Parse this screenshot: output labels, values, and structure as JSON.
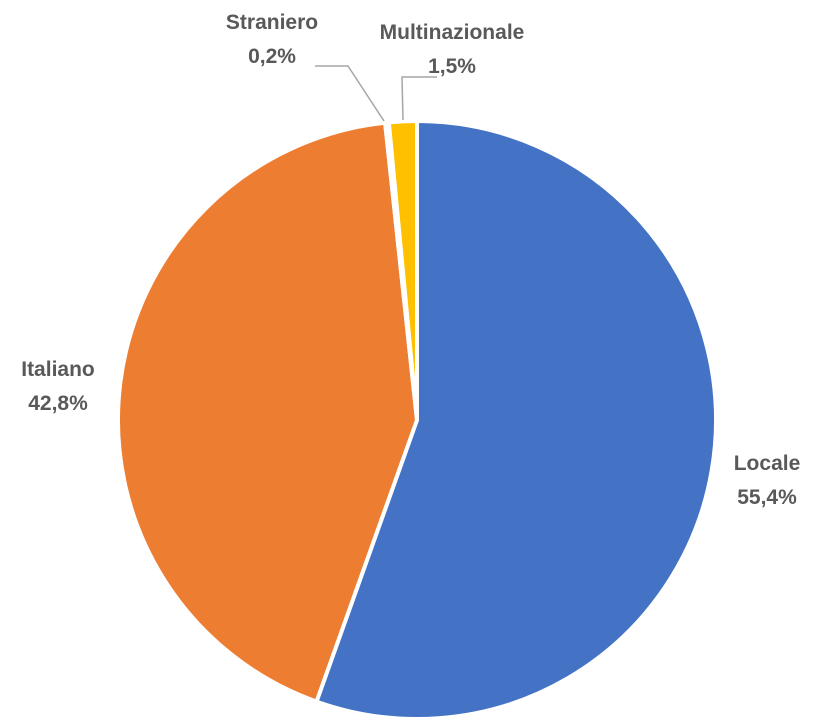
{
  "chart_data": {
    "type": "pie",
    "title": "",
    "slices": [
      {
        "label": "Locale",
        "value": 55.4,
        "value_label": "55,4%",
        "color": "#4472C4"
      },
      {
        "label": "Italiano",
        "value": 42.8,
        "value_label": "42,8%",
        "color": "#ED7D31"
      },
      {
        "label": "Straniero",
        "value": 0.2,
        "value_label": "0,2%",
        "color": "#A5A5A5"
      },
      {
        "label": "Multinazionale",
        "value": 1.5,
        "value_label": "1,5%",
        "color": "#FFC000"
      }
    ],
    "start_angle_deg": 0,
    "direction": "clockwise",
    "data_labels": "outside",
    "legend": "none"
  }
}
